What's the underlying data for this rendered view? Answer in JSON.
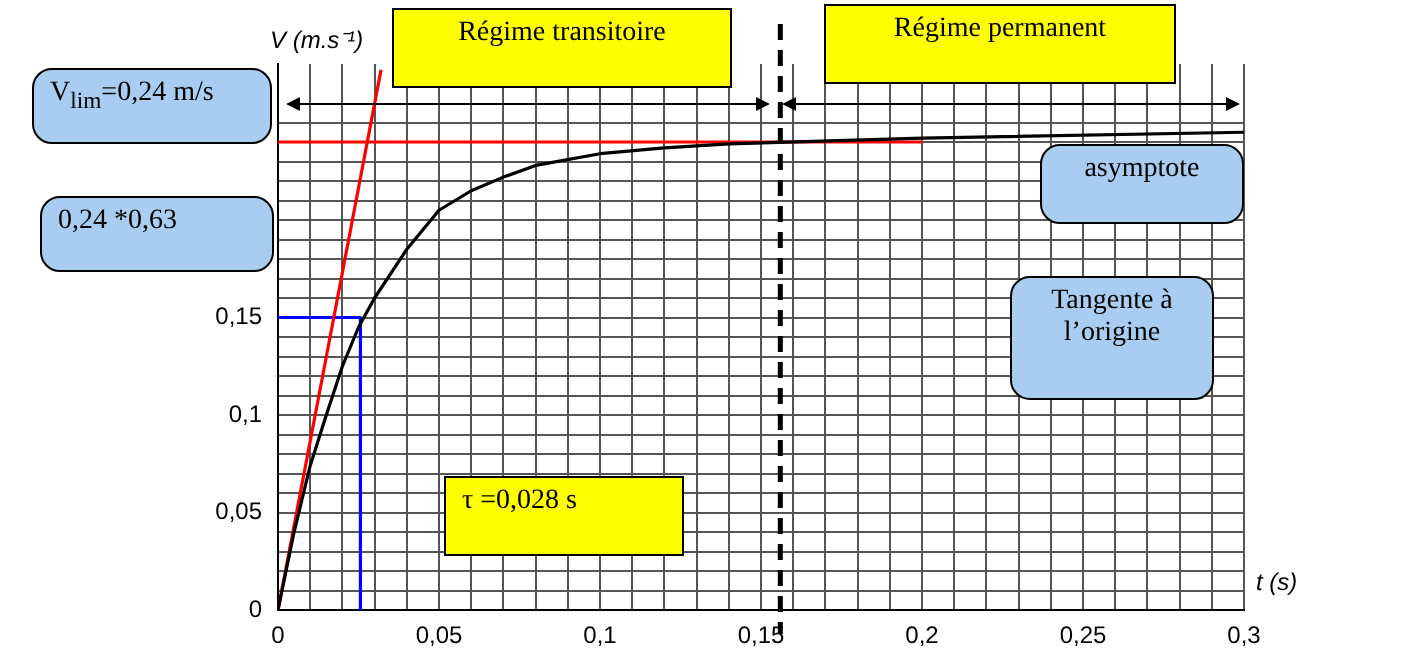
{
  "chart_data": {
    "type": "line",
    "xlabel": "t (s)",
    "ylabel": "V (m.s⁻¹)",
    "xlim": [
      0,
      0.3
    ],
    "ylim": [
      0,
      0.28
    ],
    "xticks": [
      0,
      {
        "value": 0.01,
        "label": null
      },
      {
        "value": 0.02,
        "label": null
      },
      {
        "value": 0.03,
        "label": null
      },
      {
        "value": 0.04,
        "label": null
      },
      {
        "value": 0.05,
        "label": "0,05"
      },
      {
        "value": 0.06,
        "label": null
      },
      {
        "value": 0.07,
        "label": null
      },
      {
        "value": 0.08,
        "label": null
      },
      {
        "value": 0.09,
        "label": null
      },
      {
        "value": 0.1,
        "label": "0,1"
      },
      {
        "value": 0.11,
        "label": null
      },
      {
        "value": 0.12,
        "label": null
      },
      {
        "value": 0.13,
        "label": null
      },
      {
        "value": 0.14,
        "label": null
      },
      {
        "value": 0.15,
        "label": "0,15"
      },
      {
        "value": 0.16,
        "label": null
      },
      {
        "value": 0.17,
        "label": null
      },
      {
        "value": 0.18,
        "label": null
      },
      {
        "value": 0.19,
        "label": null
      },
      {
        "value": 0.2,
        "label": "0,2"
      },
      {
        "value": 0.21,
        "label": null
      },
      {
        "value": 0.22,
        "label": null
      },
      {
        "value": 0.23,
        "label": null
      },
      {
        "value": 0.24,
        "label": null
      },
      {
        "value": 0.25,
        "label": "0,25"
      },
      {
        "value": 0.26,
        "label": null
      },
      {
        "value": 0.27,
        "label": null
      },
      {
        "value": 0.28,
        "label": null
      },
      {
        "value": 0.29,
        "label": null
      },
      {
        "value": 0.3,
        "label": "0,3"
      }
    ],
    "yticks": [
      0,
      {
        "value": 0.01,
        "label": null
      },
      {
        "value": 0.02,
        "label": null
      },
      {
        "value": 0.03,
        "label": null
      },
      {
        "value": 0.04,
        "label": null
      },
      {
        "value": 0.05,
        "label": "0,05"
      },
      {
        "value": 0.06,
        "label": null
      },
      {
        "value": 0.07,
        "label": null
      },
      {
        "value": 0.08,
        "label": null
      },
      {
        "value": 0.09,
        "label": null
      },
      {
        "value": 0.1,
        "label": "0,1"
      },
      {
        "value": 0.11,
        "label": null
      },
      {
        "value": 0.12,
        "label": null
      },
      {
        "value": 0.13,
        "label": null
      },
      {
        "value": 0.14,
        "label": null
      },
      {
        "value": 0.15,
        "label": "0,15"
      },
      {
        "value": 0.16,
        "label": null
      },
      {
        "value": 0.17,
        "label": null
      },
      {
        "value": 0.18,
        "label": null
      },
      {
        "value": 0.19,
        "label": null
      },
      {
        "value": 0.2,
        "label": null
      },
      {
        "value": 0.21,
        "label": null
      },
      {
        "value": 0.22,
        "label": null
      },
      {
        "value": 0.23,
        "label": null
      },
      {
        "value": 0.24,
        "label": null
      },
      {
        "value": 0.25,
        "label": null
      }
    ],
    "grid": true,
    "series": [
      {
        "color": "#000000",
        "x": [
          0,
          0.005,
          0.01,
          0.015,
          0.02,
          0.025,
          0.03,
          0.04,
          0.05,
          0.06,
          0.07,
          0.08,
          0.1,
          0.12,
          0.14,
          0.2,
          0.3
        ],
        "values": [
          0,
          0.04,
          0.074,
          0.1,
          0.125,
          0.145,
          0.16,
          0.185,
          0.205,
          0.215,
          0.222,
          0.228,
          0.234,
          0.237,
          0.239,
          0.242,
          0.245
        ]
      },
      {
        "color": "#ff0000",
        "x": [
          0,
          0.032
        ],
        "values": [
          0,
          0.277
        ]
      },
      {
        "color": "#ff0000",
        "x": [
          0,
          0.2
        ],
        "values": [
          0.24,
          0.24
        ]
      },
      {
        "color": "#0000ff",
        "x": [
          0,
          0.0256,
          0.0256
        ],
        "values": [
          0.15,
          0.15,
          0
        ]
      }
    ],
    "ref_lines": [
      {
        "axis": "x",
        "value": 0.156,
        "color": "#000000",
        "line_style": "dashed"
      }
    ],
    "annotations": [
      "V$_{lim}$=0,24 m/s",
      "0,24 *0,63",
      "τ =0,028 s",
      "asymptote",
      "Tangente à l’origine",
      "Régime transitoire",
      "Régime permanent"
    ]
  }
}
